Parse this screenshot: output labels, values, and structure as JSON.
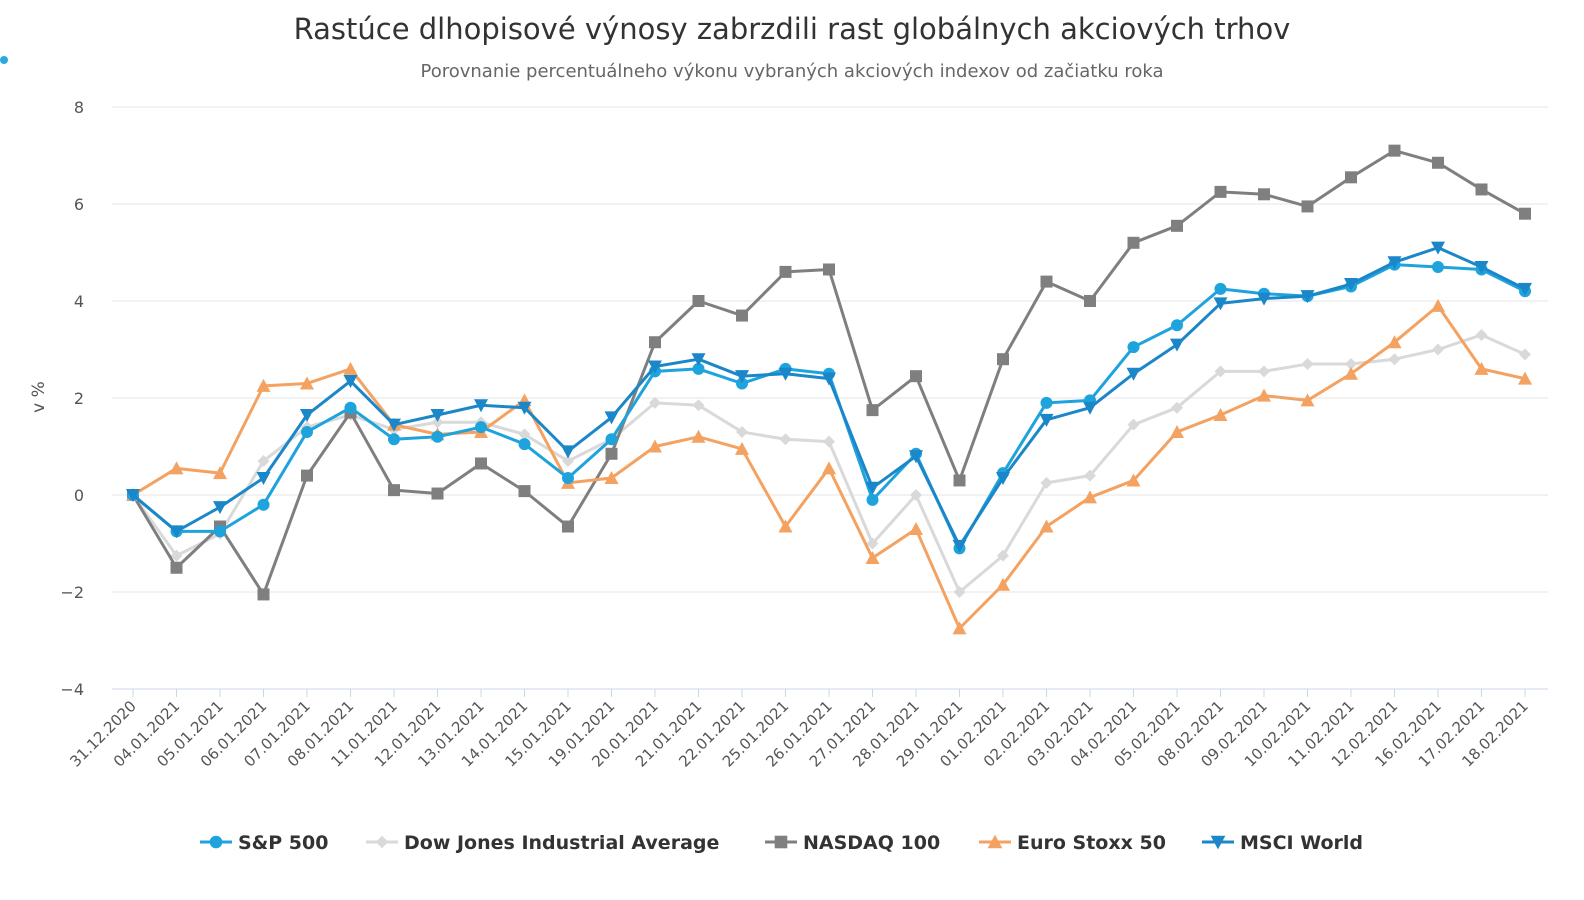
{
  "chart_data": {
    "type": "line",
    "title": "Rastúce dlhopisové výnosy zabrzdili rast globálnych akciových trhov",
    "subtitle": "Porovnanie percentuálneho výkonu vybraných akciových indexov od začiatku roka",
    "ylabel": "v %",
    "xlabel": "",
    "ylim": [
      -4,
      8
    ],
    "yticks": [
      -4,
      -2,
      0,
      2,
      4,
      6,
      8
    ],
    "ytick_labels": [
      "−4",
      "−2",
      "0",
      "2",
      "4",
      "6",
      "8"
    ],
    "grid": true,
    "legend_position": "bottom",
    "categories": [
      "31.12.2020",
      "04.01.2021",
      "05.01.2021",
      "06.01.2021",
      "07.01.2021",
      "08.01.2021",
      "11.01.2021",
      "12.01.2021",
      "13.01.2021",
      "14.01.2021",
      "15.01.2021",
      "19.01.2021",
      "20.01.2021",
      "21.01.2021",
      "22.01.2021",
      "25.01.2021",
      "26.01.2021",
      "27.01.2021",
      "28.01.2021",
      "29.01.2021",
      "01.02.2021",
      "02.02.2021",
      "03.02.2021",
      "04.02.2021",
      "05.02.2021",
      "08.02.2021",
      "09.02.2021",
      "10.02.2021",
      "11.02.2021",
      "12.02.2021",
      "16.02.2021",
      "17.02.2021",
      "18.02.2021"
    ],
    "series": [
      {
        "name": "Dow Jones Industrial Average",
        "color": "#d9d9d9",
        "marker": "diamond",
        "values": [
          0,
          -1.25,
          -0.8,
          0.7,
          1.4,
          1.65,
          1.35,
          1.5,
          1.5,
          1.25,
          0.7,
          1.15,
          1.9,
          1.85,
          1.3,
          1.15,
          1.1,
          -1.0,
          0.0,
          -2.0,
          -1.25,
          0.25,
          0.4,
          1.45,
          1.8,
          2.55,
          2.55,
          2.7,
          2.7,
          2.8,
          3.0,
          3.3,
          2.9
        ]
      },
      {
        "name": "NASDAQ 100",
        "color": "#7f7f7f",
        "marker": "square",
        "values": [
          0,
          -1.5,
          -0.65,
          -2.05,
          0.4,
          1.7,
          0.1,
          0.03,
          0.65,
          0.08,
          -0.65,
          0.85,
          3.15,
          4.0,
          3.7,
          4.6,
          4.65,
          1.75,
          2.45,
          0.3,
          2.8,
          4.4,
          4.0,
          5.2,
          5.55,
          6.25,
          6.2,
          5.95,
          6.55,
          7.1,
          6.85,
          6.3,
          5.8
        ]
      },
      {
        "name": "Euro Stoxx 50",
        "color": "#f4a261",
        "marker": "triangle",
        "values": [
          0,
          0.55,
          0.45,
          2.25,
          2.3,
          2.6,
          1.45,
          1.25,
          1.3,
          1.95,
          0.25,
          0.35,
          1.0,
          1.2,
          0.95,
          -0.65,
          0.55,
          -1.3,
          -0.7,
          -2.75,
          -1.85,
          -0.65,
          -0.05,
          0.3,
          1.3,
          1.65,
          2.05,
          1.95,
          2.5,
          3.15,
          3.9,
          2.6,
          2.4
        ]
      },
      {
        "name": "S&P 500",
        "color": "#1ea3dd",
        "marker": "circle",
        "values": [
          0,
          -0.75,
          -0.75,
          -0.2,
          1.3,
          1.8,
          1.15,
          1.2,
          1.4,
          1.05,
          0.35,
          1.15,
          2.55,
          2.6,
          2.3,
          2.6,
          2.5,
          -0.1,
          0.85,
          -1.1,
          0.45,
          1.9,
          1.95,
          3.05,
          3.5,
          4.25,
          4.15,
          4.1,
          4.3,
          4.75,
          4.7,
          4.65,
          4.2
        ]
      },
      {
        "name": "MSCI World",
        "color": "#1b87c9",
        "marker": "triangle-down",
        "values": [
          0,
          -0.75,
          -0.25,
          0.35,
          1.65,
          2.35,
          1.45,
          1.65,
          1.85,
          1.8,
          0.9,
          1.6,
          2.65,
          2.8,
          2.45,
          2.5,
          2.4,
          0.15,
          0.8,
          -1.05,
          0.35,
          1.55,
          1.8,
          2.5,
          3.1,
          3.95,
          4.05,
          4.1,
          4.35,
          4.8,
          5.1,
          4.7,
          4.25
        ]
      }
    ],
    "legend_order": [
      "S&P 500",
      "Dow Jones Industrial Average",
      "NASDAQ 100",
      "Euro Stoxx 50",
      "MSCI World"
    ]
  }
}
